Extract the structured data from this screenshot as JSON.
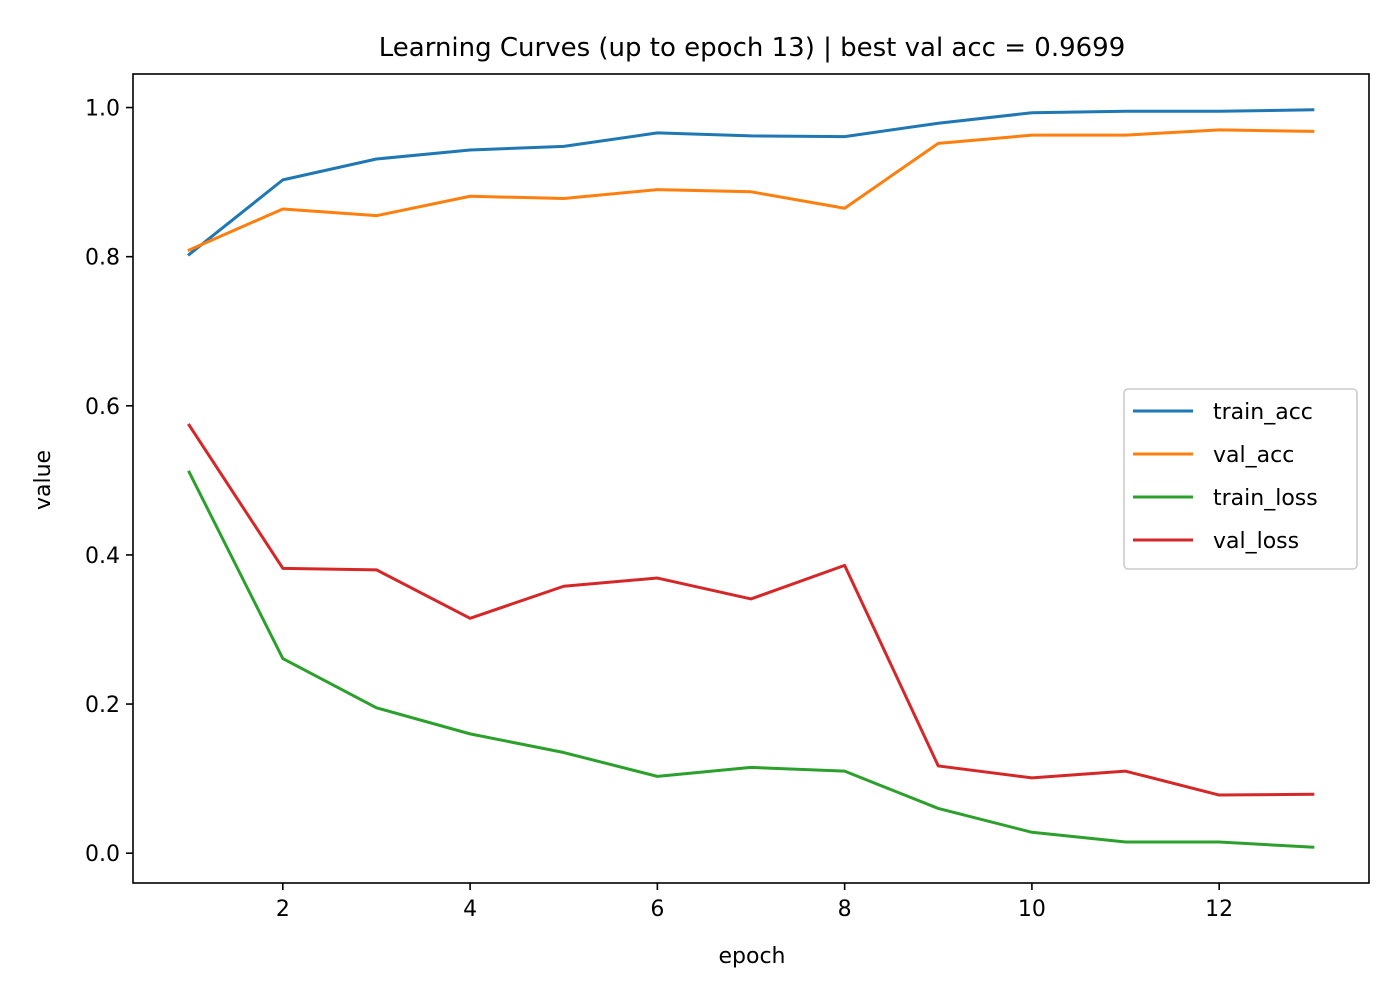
{
  "chart_data": {
    "type": "line",
    "title": "Learning Curves (up to epoch 13)  |  best val acc = 0.9699",
    "xlabel": "epoch",
    "ylabel": "value",
    "x": [
      1,
      2,
      3,
      4,
      5,
      6,
      7,
      8,
      9,
      10,
      11,
      12,
      13
    ],
    "xlim": [
      0.4,
      13.6
    ],
    "ylim": [
      -0.04,
      1.045
    ],
    "xticks": [
      2,
      4,
      6,
      8,
      10,
      12
    ],
    "xtick_labels": [
      "2",
      "4",
      "6",
      "8",
      "10",
      "12"
    ],
    "yticks": [
      0.0,
      0.2,
      0.4,
      0.6,
      0.8,
      1.0
    ],
    "ytick_labels": [
      "0.0",
      "0.2",
      "0.4",
      "0.6",
      "0.8",
      "1.0"
    ],
    "grid": false,
    "legend_position": "center-right",
    "series": [
      {
        "name": "train_acc",
        "color": "#1f77b4",
        "values": [
          0.803,
          0.903,
          0.931,
          0.943,
          0.948,
          0.966,
          0.962,
          0.961,
          0.979,
          0.993,
          0.995,
          0.995,
          0.997
        ]
      },
      {
        "name": "val_acc",
        "color": "#ff7f0e",
        "values": [
          0.809,
          0.864,
          0.855,
          0.881,
          0.878,
          0.89,
          0.887,
          0.865,
          0.952,
          0.963,
          0.963,
          0.97,
          0.968
        ]
      },
      {
        "name": "train_loss",
        "color": "#2ca02c",
        "values": [
          0.511,
          0.261,
          0.195,
          0.16,
          0.135,
          0.103,
          0.115,
          0.11,
          0.06,
          0.028,
          0.015,
          0.015,
          0.008
        ]
      },
      {
        "name": "val_loss",
        "color": "#d62728",
        "values": [
          0.574,
          0.382,
          0.38,
          0.315,
          0.358,
          0.369,
          0.341,
          0.386,
          0.117,
          0.101,
          0.11,
          0.078,
          0.079
        ]
      }
    ]
  }
}
